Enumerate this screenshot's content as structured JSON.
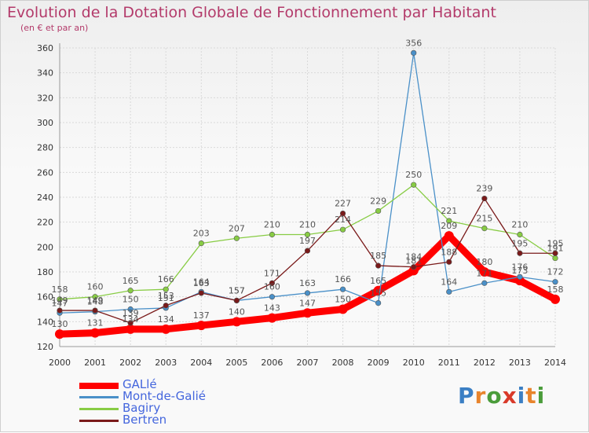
{
  "header": {
    "title": "Evolution de la Dotation Globale de Fonctionnement par Habitant",
    "subtitle": "(en € et par an)"
  },
  "brand": {
    "logo_text": "Proxiti"
  },
  "chart_data": {
    "type": "line",
    "title": "Evolution de la Dotation Globale de Fonctionnement par Habitant",
    "subtitle": "(en € et par an)",
    "x": [
      "2000",
      "2001",
      "2002",
      "2003",
      "2004",
      "2005",
      "2006",
      "2007",
      "2008",
      "2009",
      "2010",
      "2011",
      "2012",
      "2013",
      "2014"
    ],
    "ylim": [
      120,
      360
    ],
    "yticks": [
      120,
      140,
      160,
      180,
      200,
      220,
      240,
      260,
      280,
      300,
      320,
      340,
      360
    ],
    "grid": true,
    "legend_position": "bottom-left",
    "series": [
      {
        "name": "GALlé",
        "color": "#ff0000",
        "values": [
          130,
          131,
          134,
          134,
          137,
          140,
          143,
          147,
          150,
          165,
          181,
          209,
          180,
          173,
          158
        ]
      },
      {
        "name": "Mont-de-Galié",
        "color": "#4a90c8",
        "values": [
          147,
          148,
          150,
          151,
          164,
          157,
          160,
          163,
          166,
          155,
          356,
          164,
          171,
          176,
          172
        ]
      },
      {
        "name": "Bagiry",
        "color": "#88cc44",
        "values": [
          158,
          160,
          165,
          166,
          203,
          207,
          210,
          210,
          214,
          229,
          250,
          221,
          215,
          210,
          191
        ]
      },
      {
        "name": "Bertren",
        "color": "#7a1a1a",
        "values": [
          149,
          149,
          139,
          153,
          163,
          157,
          171,
          197,
          227,
          185,
          184,
          188,
          239,
          195,
          195
        ]
      }
    ]
  }
}
